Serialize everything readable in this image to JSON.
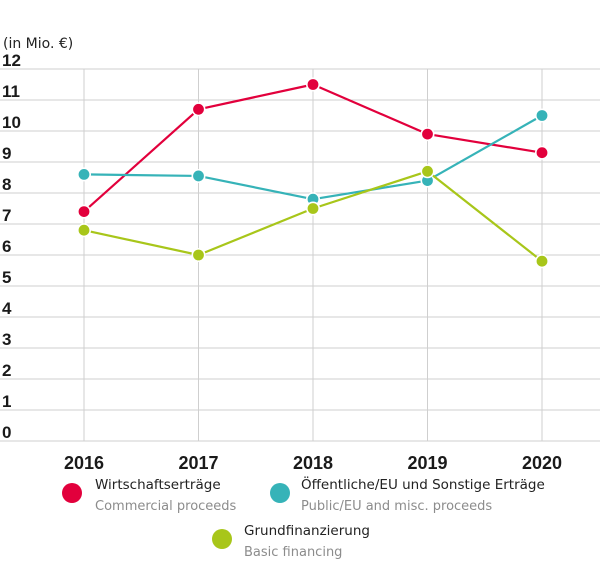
{
  "unit_label": "(in Mio. €)",
  "colors": {
    "commercial": "#e2003c",
    "public": "#36b3b8",
    "basic": "#a8c61a",
    "grid": "#cfcfcf",
    "axis_text": "#1a1a1a"
  },
  "legend": [
    {
      "label": "Wirtschaftserträge",
      "sublabel": "Commercial proceeds",
      "color_key": "commercial"
    },
    {
      "label": "Öffentliche/EU und Sonstige Erträge",
      "sublabel": "Public/EU and misc. proceeds",
      "color_key": "public"
    },
    {
      "label": "Grundfinanzierung",
      "sublabel": "Basic financing",
      "color_key": "basic"
    }
  ],
  "chart_data": {
    "type": "line",
    "title": "",
    "xlabel": "",
    "ylabel": "(in Mio. €)",
    "x": [
      "2016",
      "2017",
      "2018",
      "2019",
      "2020"
    ],
    "ylim": [
      0,
      12
    ],
    "yticks": [
      0,
      1,
      2,
      3,
      4,
      5,
      6,
      7,
      8,
      9,
      10,
      11,
      12
    ],
    "grid": true,
    "legend_position": "bottom",
    "series": [
      {
        "name": "Wirtschaftserträge",
        "color_key": "commercial",
        "values": [
          7.4,
          10.7,
          11.5,
          9.9,
          9.3
        ]
      },
      {
        "name": "Öffentliche/EU und Sonstige Erträge",
        "color_key": "public",
        "values": [
          8.6,
          8.55,
          7.8,
          8.4,
          10.5
        ]
      },
      {
        "name": "Grundfinanzierung",
        "color_key": "basic",
        "values": [
          6.8,
          6.0,
          7.5,
          8.7,
          5.8
        ]
      }
    ]
  }
}
